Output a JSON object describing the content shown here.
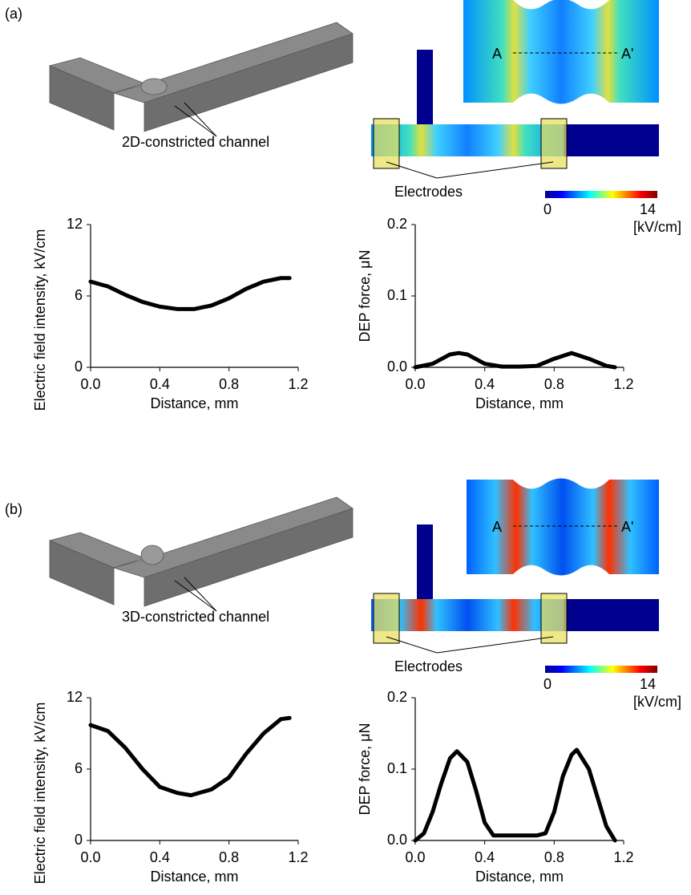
{
  "panels": [
    {
      "label": "(a)",
      "mesh_caption": "2D-constricted channel",
      "electrodes_label": "Electrodes",
      "section_start": "A",
      "section_end": "A'",
      "colorbar": {
        "min": 0,
        "max": 14,
        "unit": "[kV/cm]"
      }
    },
    {
      "label": "(b)",
      "mesh_caption": "3D-constricted channel",
      "electrodes_label": "Electrodes",
      "section_start": "A",
      "section_end": "A'",
      "colorbar": {
        "min": 0,
        "max": 14,
        "unit": "[kV/cm]"
      }
    }
  ],
  "chart_data": [
    {
      "type": "line",
      "xlabel": "Distance, mm",
      "ylabel": "Electric field intensity, kV/cm",
      "x": [
        0,
        0.1,
        0.2,
        0.3,
        0.4,
        0.5,
        0.6,
        0.7,
        0.8,
        0.9,
        1.0,
        1.1,
        1.15
      ],
      "series": [
        {
          "color": "#000000",
          "values": [
            7.2,
            6.8,
            6.1,
            5.5,
            5.1,
            4.9,
            4.9,
            5.2,
            5.8,
            6.6,
            7.2,
            7.5,
            7.5
          ]
        }
      ],
      "xlim": [
        0,
        1.2
      ],
      "xticks": [
        {
          "value": 0,
          "label": "0.0"
        },
        0.4,
        0.8,
        1.2
      ],
      "ylim": [
        0,
        12
      ],
      "yticks": [
        0,
        6,
        12
      ]
    },
    {
      "type": "line",
      "xlabel": "Distance, mm",
      "ylabel": "DEP force, μN",
      "x": [
        0,
        0.1,
        0.2,
        0.25,
        0.3,
        0.4,
        0.5,
        0.6,
        0.7,
        0.8,
        0.9,
        1.0,
        1.1,
        1.15
      ],
      "series": [
        {
          "color": "#000000",
          "values": [
            0,
            0.005,
            0.018,
            0.02,
            0.018,
            0.005,
            0.001,
            0.001,
            0.002,
            0.012,
            0.02,
            0.012,
            0.002,
            0
          ]
        }
      ],
      "xlim": [
        0,
        1.2
      ],
      "xticks": [
        {
          "value": 0,
          "label": "0.0"
        },
        0.4,
        0.8,
        1.2
      ],
      "ylim": [
        0,
        0.2
      ],
      "yticks": [
        {
          "value": 0,
          "label": "0.0"
        },
        0.1,
        0.2
      ]
    },
    {
      "type": "line",
      "xlabel": "Distance, mm",
      "ylabel": "Electric field intensity, kV/cm",
      "x": [
        0,
        0.1,
        0.2,
        0.3,
        0.4,
        0.5,
        0.58,
        0.7,
        0.8,
        0.9,
        1.0,
        1.1,
        1.15
      ],
      "series": [
        {
          "color": "#000000",
          "values": [
            9.7,
            9.2,
            7.8,
            6.0,
            4.5,
            4.0,
            3.8,
            4.3,
            5.3,
            7.3,
            9.0,
            10.2,
            10.3
          ]
        }
      ],
      "xlim": [
        0,
        1.2
      ],
      "xticks": [
        {
          "value": 0,
          "label": "0.0"
        },
        0.4,
        0.8,
        1.2
      ],
      "ylim": [
        0,
        12
      ],
      "yticks": [
        0,
        6,
        12
      ]
    },
    {
      "type": "line",
      "xlabel": "Distance, mm",
      "ylabel": "DEP force, μN",
      "x": [
        0,
        0.05,
        0.1,
        0.15,
        0.2,
        0.24,
        0.3,
        0.35,
        0.4,
        0.45,
        0.5,
        0.6,
        0.7,
        0.75,
        0.8,
        0.85,
        0.9,
        0.93,
        1.0,
        1.05,
        1.1,
        1.15
      ],
      "series": [
        {
          "color": "#000000",
          "values": [
            0,
            0.01,
            0.04,
            0.08,
            0.115,
            0.125,
            0.11,
            0.07,
            0.025,
            0.007,
            0.007,
            0.007,
            0.007,
            0.01,
            0.04,
            0.09,
            0.12,
            0.127,
            0.1,
            0.06,
            0.02,
            0
          ]
        }
      ],
      "xlim": [
        0,
        1.2
      ],
      "xticks": [
        {
          "value": 0,
          "label": "0.0"
        },
        0.4,
        0.8,
        1.2
      ],
      "ylim": [
        0,
        0.2
      ],
      "yticks": [
        {
          "value": 0,
          "label": "0.0"
        },
        0.1,
        0.2
      ]
    }
  ]
}
